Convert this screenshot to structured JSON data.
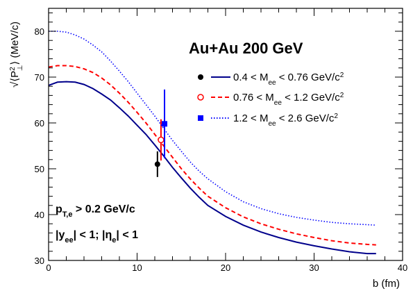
{
  "chart_data": {
    "type": "line",
    "title": "Au+Au 200 GeV",
    "xlabel": "b (fm)",
    "ylabel": {
      "pre": "√⟨",
      "p": "P",
      "sup": "2",
      "sub": "⊥",
      "post": "⟩ (MeV/c)"
    },
    "xlim": [
      0,
      40
    ],
    "ylim": [
      30,
      85
    ],
    "xticks": [
      "0",
      "10",
      "20",
      "30",
      "40"
    ],
    "yticks": [
      "30",
      "40",
      "50",
      "60",
      "70",
      "80"
    ],
    "annotations": {
      "line1": {
        "pre": "p",
        "sub": "T,e",
        "post": " > 0.2 GeV/c"
      },
      "line2": {
        "a": "|y",
        "sub1": "ee",
        "b": "| < 1; |η",
        "sub2": "e",
        "c": "| < 1"
      }
    },
    "series": [
      {
        "name": "0.4 < M_ee < 0.76 GeV/c²",
        "label": {
          "pre": "0.4 < M",
          "sub": "ee",
          "mid": " < 0.76 GeV/c",
          "sup": "2"
        },
        "color": "#00008b",
        "style": "solid",
        "marker": "filled-circle",
        "marker_color": "#000000",
        "curve": [
          [
            0,
            68.2
          ],
          [
            1,
            68.9
          ],
          [
            2,
            69.0
          ],
          [
            3,
            68.9
          ],
          [
            4,
            68.4
          ],
          [
            5,
            67.5
          ],
          [
            6,
            66.3
          ],
          [
            7,
            65.0
          ],
          [
            8,
            63.3
          ],
          [
            9,
            61.5
          ],
          [
            10,
            59.5
          ],
          [
            11,
            57.5
          ],
          [
            12,
            55.2
          ],
          [
            13,
            52.8
          ],
          [
            14,
            50.3
          ],
          [
            15,
            48.0
          ],
          [
            16,
            45.8
          ],
          [
            17,
            43.8
          ],
          [
            18,
            42.0
          ],
          [
            20,
            39.6
          ],
          [
            22,
            37.7
          ],
          [
            24,
            36.2
          ],
          [
            26,
            35.0
          ],
          [
            28,
            34.0
          ],
          [
            30,
            33.2
          ],
          [
            32,
            32.5
          ],
          [
            34,
            31.9
          ],
          [
            36,
            31.5
          ],
          [
            37,
            31.5
          ]
        ],
        "point": {
          "x": 12.3,
          "y": 51.0,
          "err": 2.8
        }
      },
      {
        "name": "0.76 < M_ee < 1.2 GeV/c²",
        "label": {
          "pre": "0.76 < M",
          "sub": "ee",
          "mid": " < 1.2 GeV/c",
          "sup": "2"
        },
        "color": "#ff0000",
        "style": "dashed",
        "marker": "open-circle",
        "marker_color": "#ff0000",
        "curve": [
          [
            0,
            72.2
          ],
          [
            1,
            72.5
          ],
          [
            2,
            72.5
          ],
          [
            3,
            72.3
          ],
          [
            4,
            71.8
          ],
          [
            5,
            71.0
          ],
          [
            6,
            69.8
          ],
          [
            7,
            68.3
          ],
          [
            8,
            66.5
          ],
          [
            9,
            64.5
          ],
          [
            10,
            62.3
          ],
          [
            11,
            60.0
          ],
          [
            12,
            57.5
          ],
          [
            13,
            55.0
          ],
          [
            14,
            52.5
          ],
          [
            15,
            50.0
          ],
          [
            16,
            47.8
          ],
          [
            17,
            45.8
          ],
          [
            18,
            44.0
          ],
          [
            20,
            41.5
          ],
          [
            22,
            39.5
          ],
          [
            24,
            38.0
          ],
          [
            26,
            36.8
          ],
          [
            28,
            35.8
          ],
          [
            30,
            35.0
          ],
          [
            32,
            34.3
          ],
          [
            34,
            33.8
          ],
          [
            36,
            33.5
          ],
          [
            37,
            33.4
          ]
        ],
        "point": {
          "x": 12.7,
          "y": 56.3,
          "err": 4.5
        }
      },
      {
        "name": "1.2 < M_ee < 2.6 GeV/c²",
        "label": {
          "pre": "1.2 < M",
          "sub": "ee",
          "mid": " < 2.6 GeV/c",
          "sup": "2"
        },
        "color": "#0000ff",
        "style": "dotted",
        "marker": "filled-square",
        "marker_color": "#0000ff",
        "curve": [
          [
            0,
            80.0
          ],
          [
            1,
            80.0
          ],
          [
            2,
            79.8
          ],
          [
            3,
            79.2
          ],
          [
            4,
            78.3
          ],
          [
            5,
            77.0
          ],
          [
            6,
            75.5
          ],
          [
            7,
            73.5
          ],
          [
            8,
            71.3
          ],
          [
            9,
            69.0
          ],
          [
            10,
            66.5
          ],
          [
            11,
            64.0
          ],
          [
            12,
            61.5
          ],
          [
            13,
            58.8
          ],
          [
            14,
            56.2
          ],
          [
            15,
            53.8
          ],
          [
            16,
            51.5
          ],
          [
            17,
            49.5
          ],
          [
            18,
            47.8
          ],
          [
            20,
            45.0
          ],
          [
            22,
            42.8
          ],
          [
            24,
            41.3
          ],
          [
            26,
            40.2
          ],
          [
            28,
            39.4
          ],
          [
            30,
            38.8
          ],
          [
            32,
            38.3
          ],
          [
            34,
            38.0
          ],
          [
            36,
            37.8
          ],
          [
            37,
            37.7
          ]
        ],
        "point": {
          "x": 13.1,
          "y": 59.8,
          "err": 7.5
        }
      }
    ]
  }
}
